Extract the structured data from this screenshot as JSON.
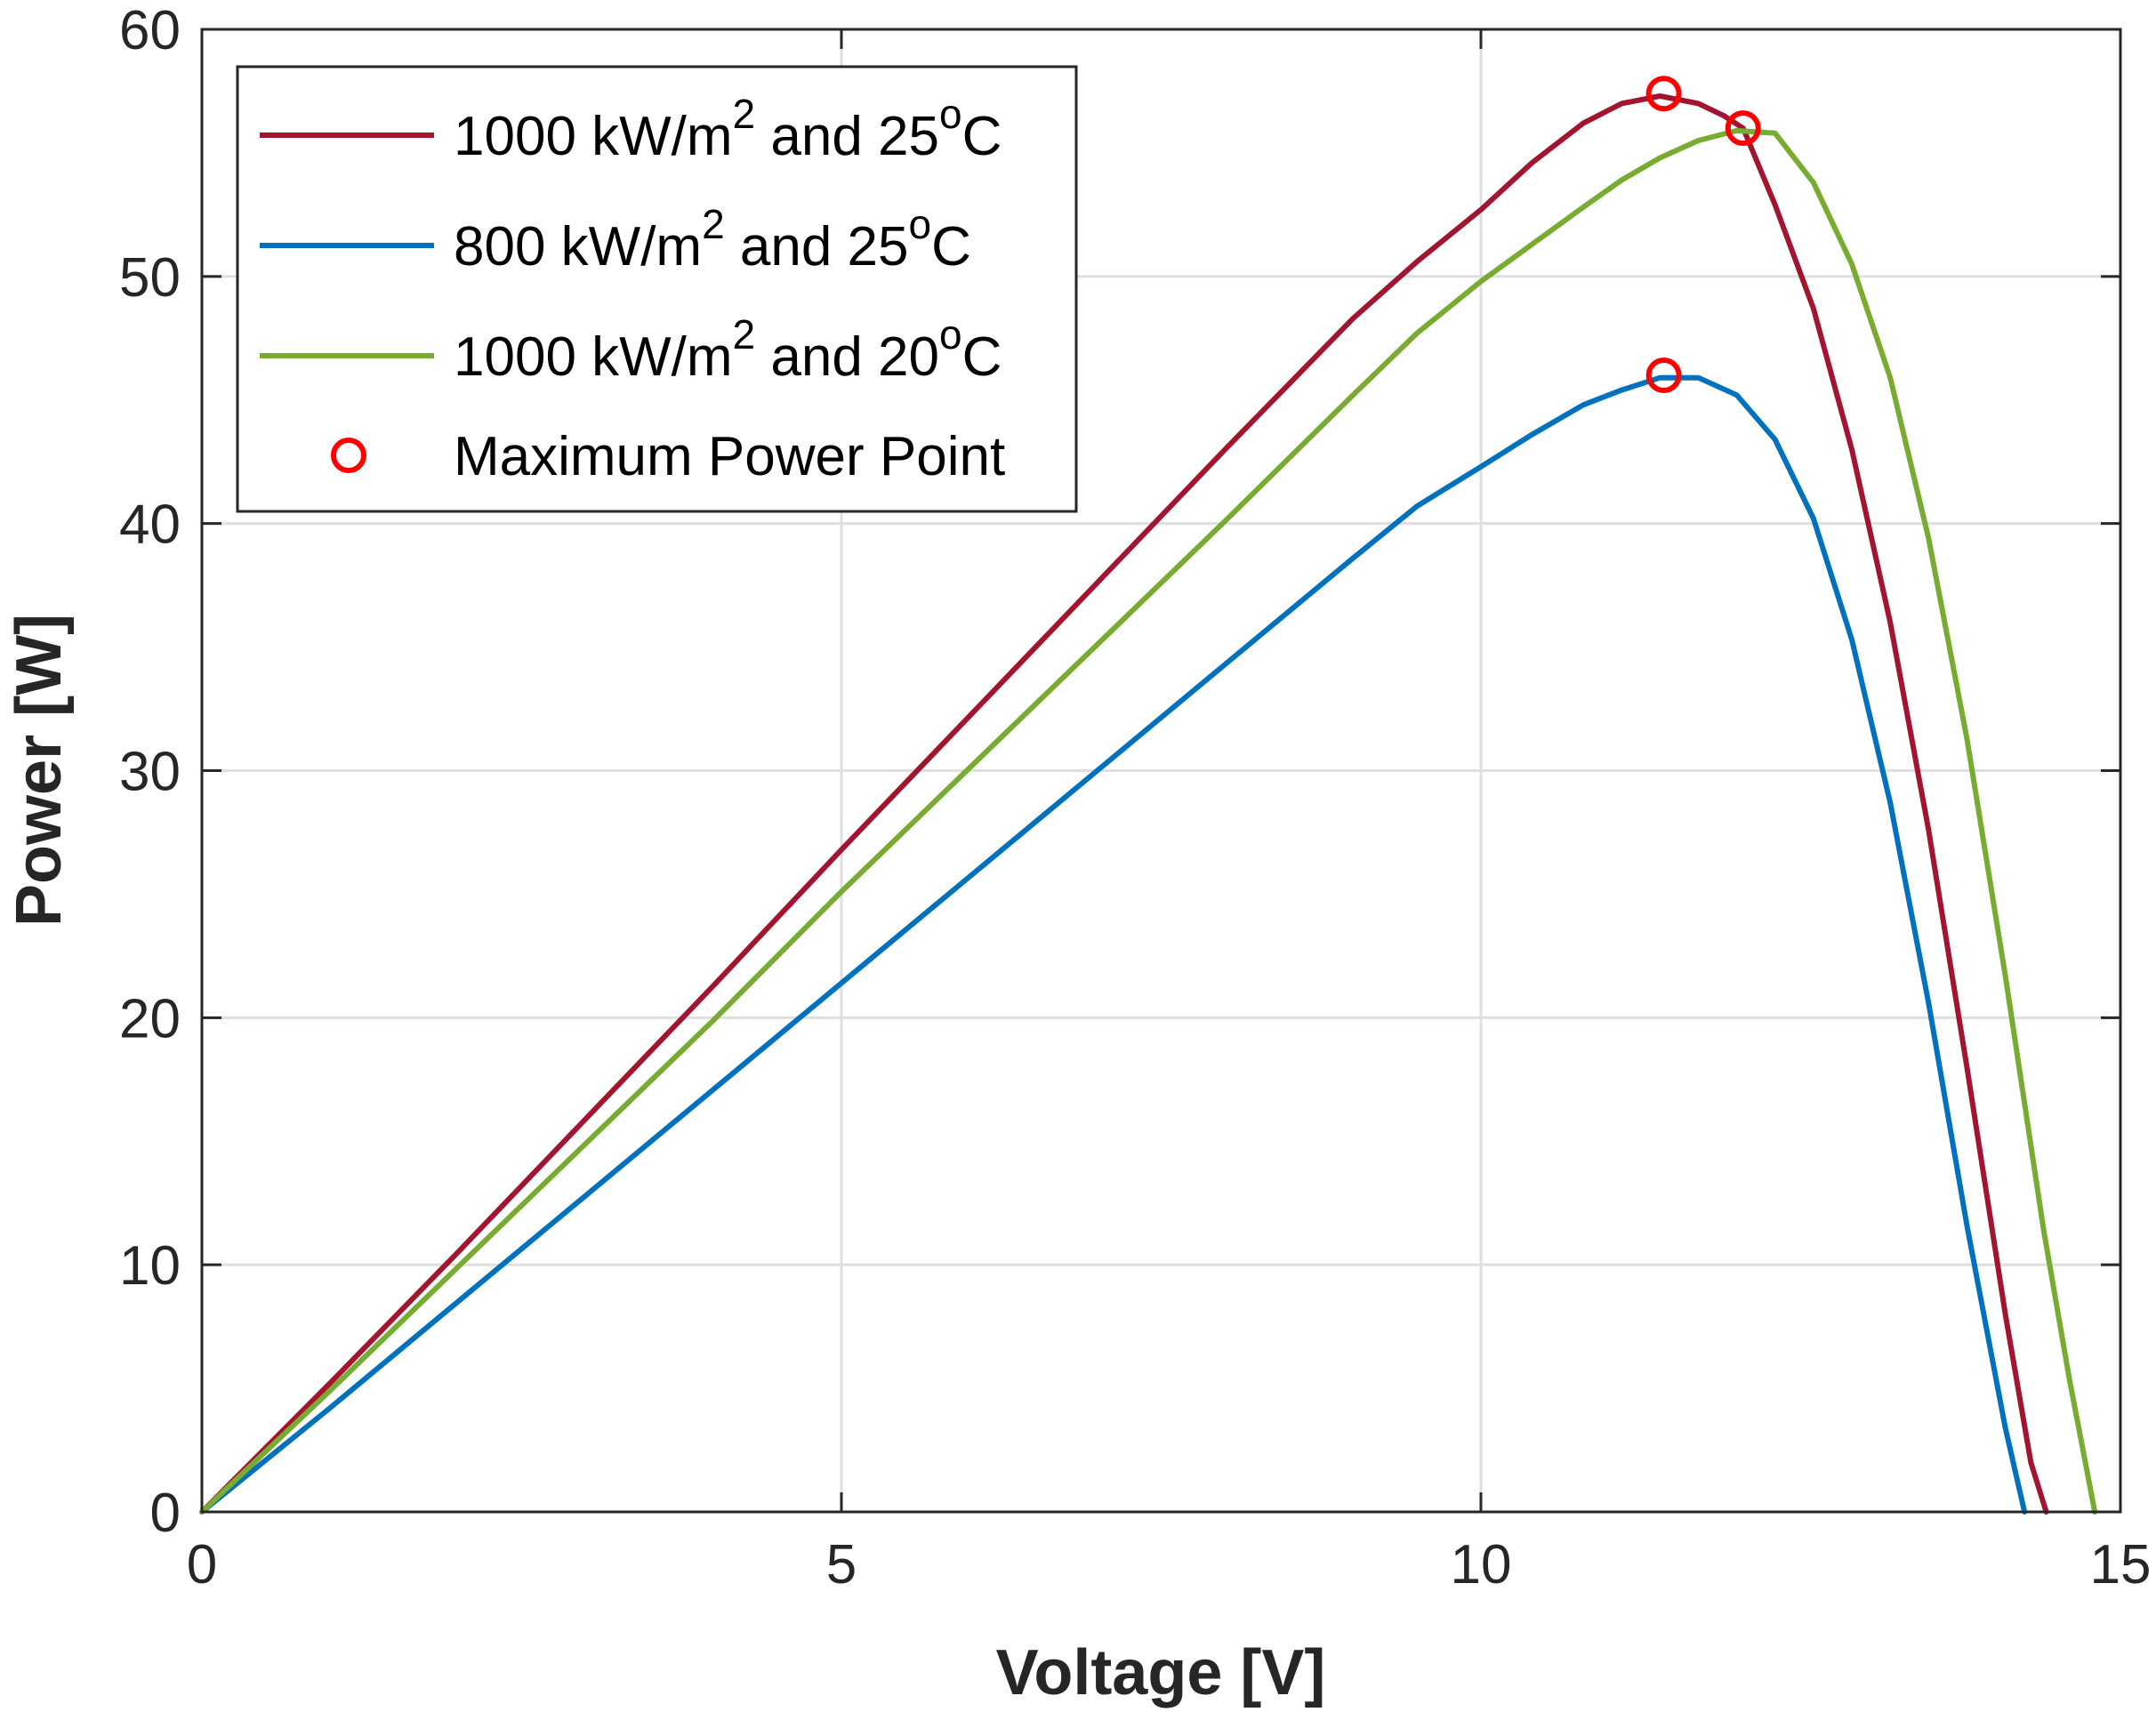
{
  "chart_data": {
    "type": "line",
    "title": "",
    "xlabel": "Voltage [V]",
    "ylabel": "Power [W]",
    "xlim": [
      0,
      15
    ],
    "ylim": [
      0,
      60
    ],
    "xticks": [
      0,
      5,
      10,
      15
    ],
    "yticks": [
      0,
      10,
      20,
      30,
      40,
      50,
      60
    ],
    "xtick_labels": [
      "0",
      "5",
      "10",
      "15"
    ],
    "ytick_labels": [
      "0",
      "10",
      "20",
      "30",
      "40",
      "50",
      "60"
    ],
    "grid": true,
    "legend_position": "top-left",
    "series": [
      {
        "name": "1000 kW/m2 and 25oC",
        "legend": {
          "pre": "1000 kW/m",
          "sup1": "2",
          "mid": " and 25",
          "sup2": "o",
          "post": "C"
        },
        "color": "#A2142F",
        "x": [
          0,
          1,
          2,
          3,
          4,
          5,
          6,
          7,
          8,
          9,
          9.5,
          10,
          10.4,
          10.8,
          11.1,
          11.4,
          11.7,
          11.9,
          12.05,
          12.3,
          12.6,
          12.9,
          13.2,
          13.5,
          13.8,
          14.1,
          14.3,
          14.42
        ],
        "y": [
          0,
          5.2,
          10.5,
          15.9,
          21.3,
          26.8,
          32.2,
          37.6,
          43.0,
          48.3,
          50.6,
          52.7,
          54.6,
          56.2,
          57.0,
          57.3,
          57.0,
          56.5,
          56.0,
          52.9,
          48.7,
          43.0,
          36.0,
          27.6,
          18.0,
          8.0,
          2.0,
          0
        ]
      },
      {
        "name": "800 kW/m2 and 25oC",
        "legend": {
          "pre": "800 kW/m",
          "sup1": "2",
          "mid": " and 25",
          "sup2": "o",
          "post": "C"
        },
        "color": "#0072BD",
        "x": [
          0,
          1,
          2,
          3,
          4,
          5,
          6,
          7,
          8,
          9,
          9.5,
          10,
          10.4,
          10.8,
          11.1,
          11.4,
          11.7,
          12.0,
          12.3,
          12.6,
          12.9,
          13.2,
          13.5,
          13.8,
          14.1,
          14.25
        ],
        "y": [
          0,
          4.2,
          8.5,
          12.8,
          17.1,
          21.4,
          25.7,
          30.0,
          34.3,
          38.6,
          40.7,
          42.3,
          43.6,
          44.8,
          45.4,
          45.9,
          45.9,
          45.2,
          43.4,
          40.2,
          35.3,
          28.7,
          20.6,
          11.6,
          3.4,
          0
        ]
      },
      {
        "name": "1000 kW/m2 and 20oC",
        "legend": {
          "pre": "1000 kW/m",
          "sup1": "2",
          "mid": " and 20",
          "sup2": "o",
          "post": "C"
        },
        "color": "#77AC30",
        "x": [
          0,
          1,
          2,
          3,
          4,
          5,
          6,
          7,
          8,
          9,
          9.5,
          10,
          10.4,
          10.8,
          11.1,
          11.4,
          11.7,
          12.0,
          12.3,
          12.6,
          12.9,
          13.2,
          13.5,
          13.8,
          14.1,
          14.4,
          14.6,
          14.8
        ],
        "y": [
          0,
          4.9,
          9.9,
          14.9,
          19.9,
          25.1,
          30.1,
          35.1,
          40.1,
          45.2,
          47.7,
          49.8,
          51.3,
          52.8,
          53.9,
          54.8,
          55.5,
          55.9,
          55.8,
          53.8,
          50.5,
          45.9,
          39.4,
          31.3,
          21.7,
          11.4,
          5.4,
          0
        ]
      }
    ],
    "markers": {
      "name": "Maximum Power Point",
      "color": "#FF0000",
      "points": [
        {
          "x": 11.43,
          "y": 57.4
        },
        {
          "x": 12.05,
          "y": 56.0
        },
        {
          "x": 11.43,
          "y": 46.0
        }
      ]
    }
  }
}
